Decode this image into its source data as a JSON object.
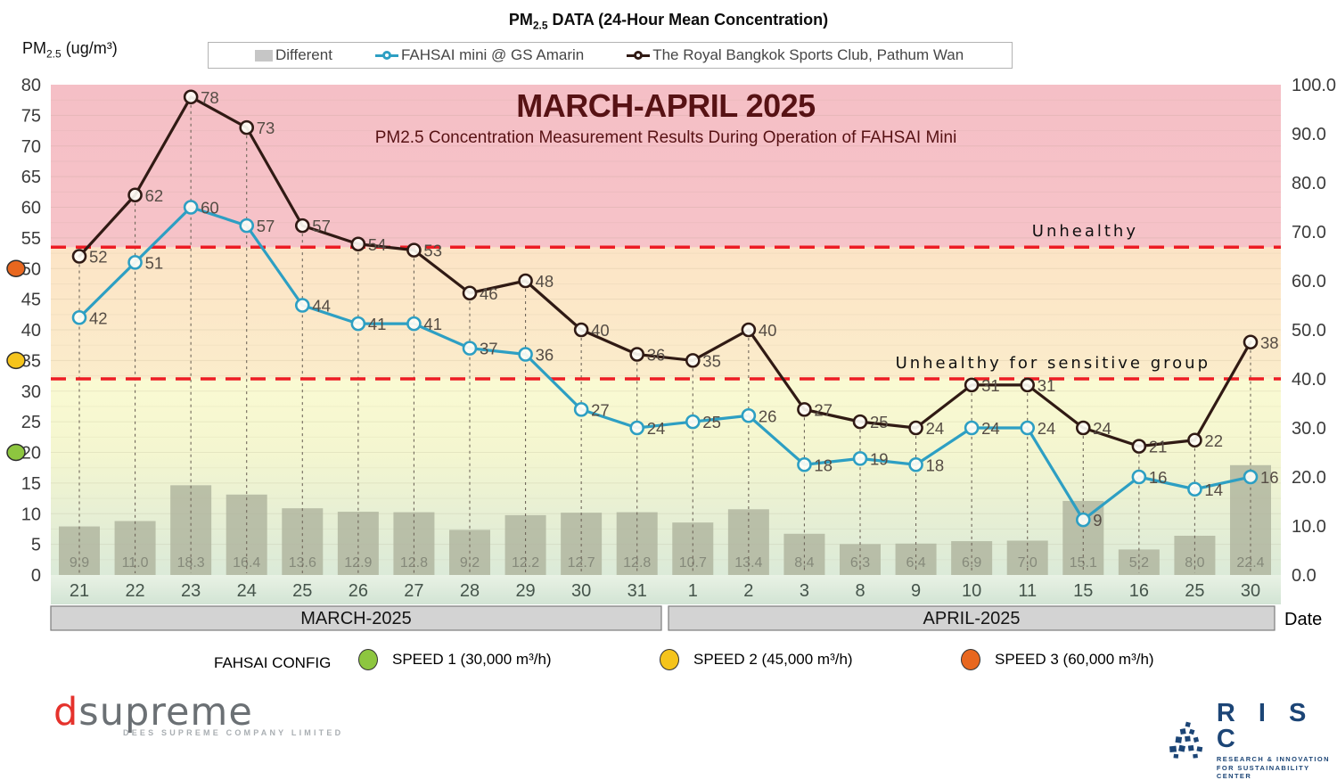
{
  "header": {
    "title_pm": "PM",
    "title_sub": "2.5",
    "title_rest": " DATA (24-Hour Mean Concentration)"
  },
  "y_axis": {
    "label_pm": "PM",
    "label_sub": "2.5",
    "label_rest": " (ug/m³)"
  },
  "legend": {
    "different": "Different",
    "fahsai": "FAHSAI mini @ GS Amarin",
    "royal": "The Royal Bangkok Sports Club, Pathum Wan"
  },
  "chart_data": {
    "type": "bar+line",
    "title": "MARCH-APRIL 2025",
    "subtitle": "PM2.5 Concentration Measurement Results During Operation of FAHSAI Mini",
    "title_color": "#571214",
    "categories": [
      "21",
      "22",
      "23",
      "24",
      "25",
      "26",
      "27",
      "28",
      "29",
      "30",
      "31",
      "1",
      "2",
      "3",
      "8",
      "9",
      "10",
      "11",
      "15",
      "16",
      "25",
      "30"
    ],
    "month_groups": [
      {
        "label": "MARCH-2025",
        "span": 11
      },
      {
        "label": "APRIL-2025",
        "span": 11
      }
    ],
    "x_axis_title": "Date",
    "left_axis": {
      "min": 0,
      "max": 80,
      "step": 5
    },
    "right_axis": {
      "min": 0,
      "max": 100,
      "step": 10
    },
    "bars": {
      "name": "Different",
      "color": "#aeb39c",
      "values": [
        9.9,
        11.0,
        18.3,
        16.4,
        13.6,
        12.9,
        12.8,
        9.2,
        12.2,
        12.7,
        12.8,
        10.7,
        13.4,
        8.4,
        6.3,
        6.4,
        6.9,
        7.0,
        15.1,
        5.2,
        8.0,
        22.4
      ]
    },
    "series": [
      {
        "name": "FAHSAI mini @ GS Amarin",
        "color": "#2d9fc3",
        "values": [
          42,
          51,
          60,
          57,
          44,
          41,
          41,
          37,
          36,
          27,
          24,
          25,
          26,
          18,
          19,
          18,
          24,
          24,
          9,
          16,
          14,
          16
        ]
      },
      {
        "name": "The Royal Bangkok Sports Club, Pathum Wan",
        "color": "#301a14",
        "values": [
          52,
          62,
          78,
          73,
          57,
          54,
          53,
          46,
          48,
          40,
          36,
          35,
          40,
          27,
          25,
          24,
          31,
          31,
          24,
          21,
          22,
          38
        ]
      }
    ],
    "thresholds": [
      {
        "label": "Unhealthy",
        "value": 53.5,
        "color": "#ed1c24"
      },
      {
        "label": "Unhealthy for sensitive group",
        "value": 32,
        "color": "#ed1c24"
      }
    ],
    "speed_dots": [
      {
        "value": 50,
        "color": "#e8671f"
      },
      {
        "value": 35,
        "color": "#f5c41c"
      },
      {
        "value": 20,
        "color": "#8dc63f"
      }
    ],
    "background_stops": [
      {
        "offset": 0.0,
        "color": "#f5bfc6"
      },
      {
        "offset": 0.331,
        "color": "#f6c3c8"
      },
      {
        "offset": 0.332,
        "color": "#fce4c6"
      },
      {
        "offset": 0.599,
        "color": "#fbeccb"
      },
      {
        "offset": 0.601,
        "color": "#fafad2"
      },
      {
        "offset": 0.75,
        "color": "#f4f6d0"
      },
      {
        "offset": 0.88,
        "color": "#e7efd4"
      },
      {
        "offset": 1.0,
        "color": "#dbead8"
      }
    ]
  },
  "config_legend": {
    "title": "FAHSAI CONFIG",
    "items": [
      {
        "label": "SPEED 1 (30,000 m³/h)",
        "color": "#8dc63f"
      },
      {
        "label": "SPEED 2 (45,000 m³/h)",
        "color": "#f5c41c"
      },
      {
        "label": "SPEED 3 (60,000 m³/h)",
        "color": "#e8671f"
      }
    ]
  },
  "logos": {
    "dsupreme": {
      "d": "d",
      "rest": "supreme",
      "tagline": "DEES SUPREME COMPANY LIMITED"
    },
    "risc": {
      "name": "R I S C",
      "line1": "RESEARCH & INNOVATION",
      "line2": "FOR SUSTAINABILITY CENTER"
    }
  }
}
